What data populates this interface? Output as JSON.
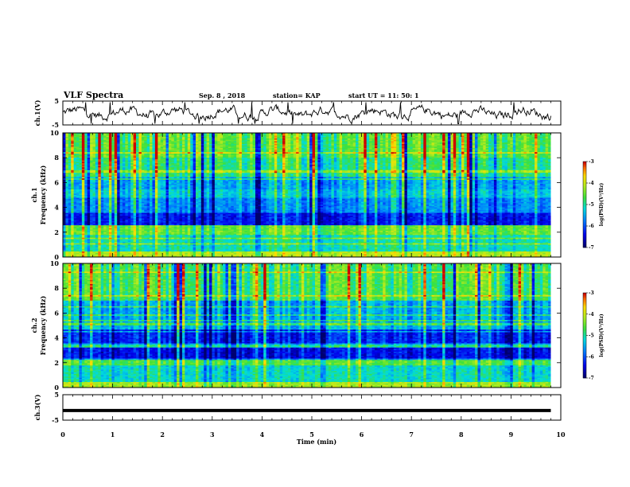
{
  "header": {
    "title": "VLF Spectra",
    "date": "Sep. 8 , 2018",
    "station": "station= KAP",
    "start": "start UT = 11: 50: 1"
  },
  "chart_data": [
    {
      "type": "line",
      "name": "ch1-waveform",
      "ylabel": "ch.1(V)",
      "ylim": [
        -5,
        5
      ],
      "yticks": [
        "5",
        "-5"
      ],
      "xlim": [
        0,
        10
      ],
      "description_level": "noisy signal fluctuating roughly between -4 and 4 V"
    },
    {
      "type": "heatmap",
      "name": "ch1-spectrogram",
      "ylabel": "ch.1",
      "ylabel2": "Frequency (kHz)",
      "ylim": [
        0,
        10
      ],
      "yticks": [
        "0",
        "2",
        "4",
        "6",
        "8",
        "10"
      ],
      "xlim": [
        0,
        9.8
      ],
      "colorbar": {
        "label": "log(PSD)(V²/Hz)",
        "range": [
          -7,
          -3
        ],
        "ticks": [
          "-3",
          "-4",
          "-5",
          "-6",
          "-7"
        ]
      }
    },
    {
      "type": "heatmap",
      "name": "ch2-spectrogram",
      "ylabel": "ch.2",
      "ylabel2": "Frequency (kHz)",
      "ylim": [
        0,
        10
      ],
      "yticks": [
        "0",
        "2",
        "4",
        "6",
        "8",
        "10"
      ],
      "xlim": [
        0,
        9.8
      ],
      "colorbar": {
        "label": "log(PSD)(V²/Hz)",
        "range": [
          -7,
          -3
        ],
        "ticks": [
          "-3",
          "-4",
          "-5",
          "-6",
          "-7"
        ]
      }
    },
    {
      "type": "line",
      "name": "ch3-waveform",
      "ylabel": "ch.3(V)",
      "ylim": [
        -5,
        5
      ],
      "yticks": [
        "5",
        "-5"
      ],
      "x": [
        0,
        9.8
      ],
      "y": [
        -1.2,
        -1.2
      ]
    }
  ],
  "xaxis": {
    "label": "Time (min)",
    "ticks": [
      "0",
      "1",
      "2",
      "3",
      "4",
      "5",
      "6",
      "7",
      "8",
      "9",
      "10"
    ],
    "xlim": [
      0,
      10
    ]
  }
}
